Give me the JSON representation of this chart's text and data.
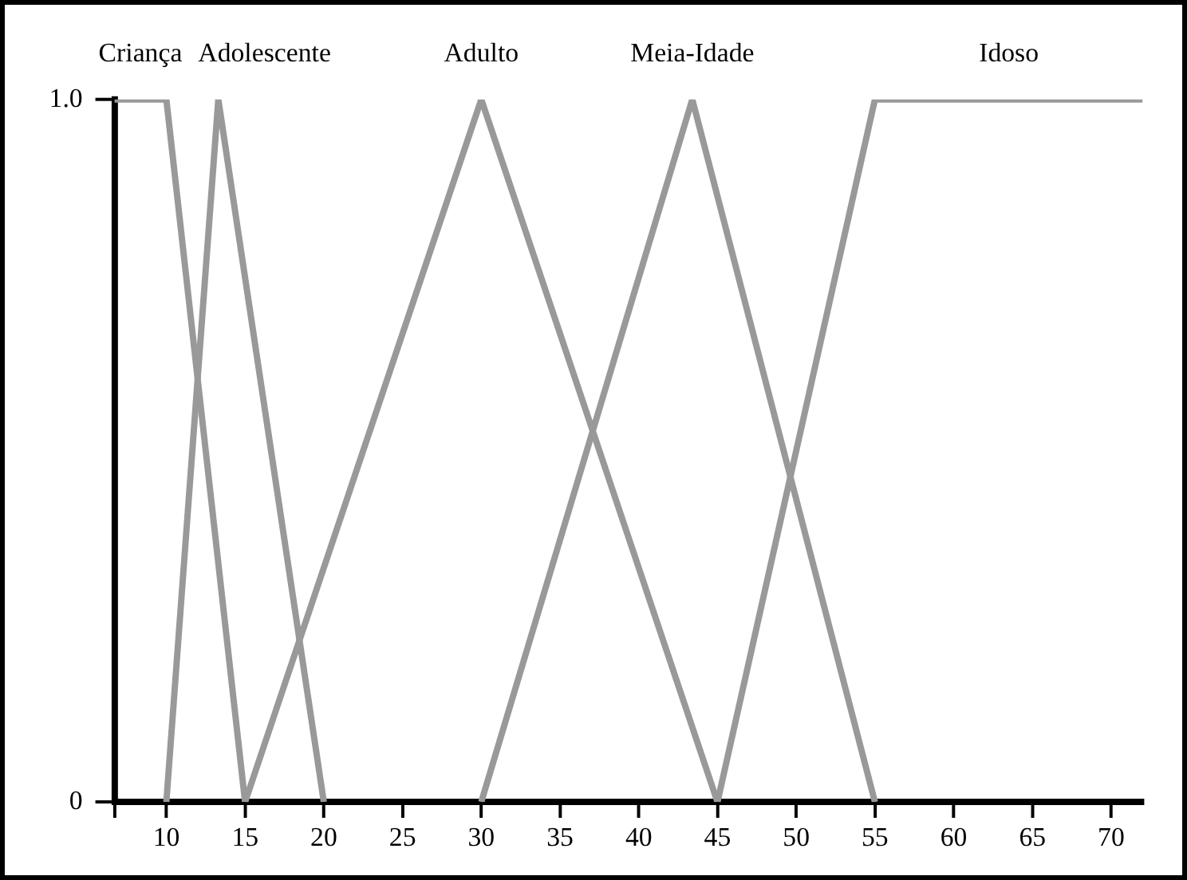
{
  "chart_data": {
    "type": "line",
    "xlim": [
      6.7,
      72
    ],
    "xticks": [
      {
        "value": 6.7,
        "label": null
      },
      10,
      15,
      20,
      25,
      30,
      35,
      40,
      45,
      50,
      55,
      60,
      65,
      70
    ],
    "ylim": [
      0,
      1
    ],
    "yticks": [
      0,
      {
        "value": 1,
        "label": "1.0"
      }
    ],
    "grid": false,
    "legend": false,
    "marker": "none",
    "line_style": "solid",
    "series": [
      {
        "name": "Criança",
        "color": "#999999",
        "x": [
          6.7,
          10,
          15
        ],
        "values": [
          1,
          1,
          0
        ]
      },
      {
        "name": "Adolescente",
        "color": "#999999",
        "x": [
          10,
          13.3,
          20
        ],
        "values": [
          0,
          1,
          0
        ]
      },
      {
        "name": "Adulto",
        "color": "#999999",
        "x": [
          15,
          30,
          45
        ],
        "values": [
          0,
          1,
          0
        ]
      },
      {
        "name": "Meia-Idade",
        "color": "#999999",
        "x": [
          30,
          43.4,
          55
        ],
        "values": [
          0,
          1,
          0
        ]
      },
      {
        "name": "Idoso",
        "color": "#999999",
        "x": [
          45,
          55,
          72
        ],
        "values": [
          0,
          1,
          1
        ]
      }
    ]
  }
}
